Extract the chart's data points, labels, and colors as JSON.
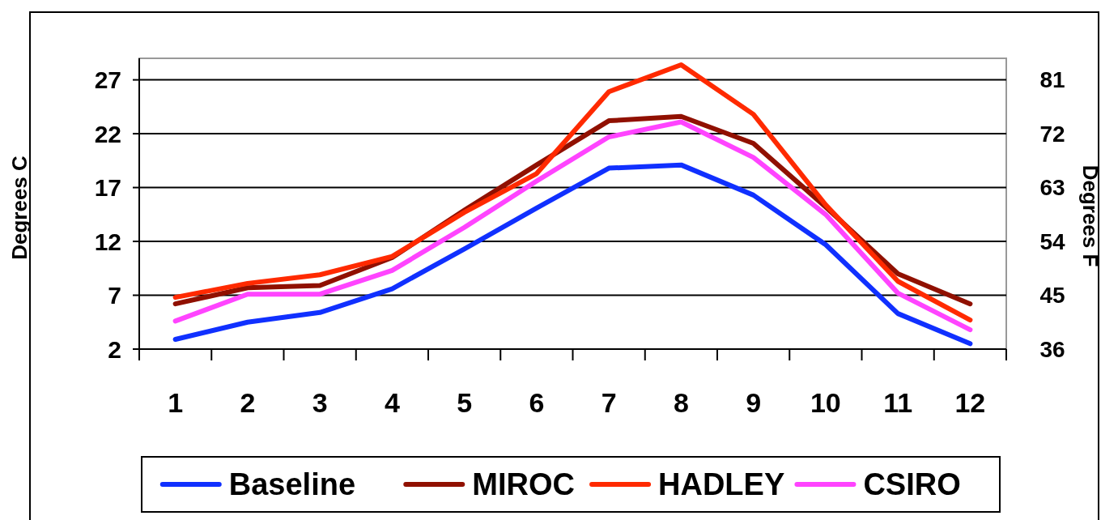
{
  "chart_data": {
    "type": "line",
    "ylabel": "Degrees C",
    "y2label": "Degrees F",
    "categories": [
      "1",
      "2",
      "3",
      "4",
      "5",
      "6",
      "7",
      "8",
      "9",
      "10",
      "11",
      "12"
    ],
    "series": [
      {
        "name": "Baseline",
        "color": "#1030ff",
        "values": [
          2.9,
          4.5,
          5.4,
          7.6,
          11.3,
          15.1,
          18.8,
          19.1,
          16.3,
          11.7,
          5.3,
          2.5
        ]
      },
      {
        "name": "MIROC",
        "color": "#901000",
        "values": [
          6.2,
          7.7,
          7.9,
          10.5,
          14.9,
          19.1,
          23.2,
          23.6,
          21.1,
          15.2,
          9.0,
          6.2
        ]
      },
      {
        "name": "HADLEY",
        "color": "#ff2a00",
        "values": [
          6.8,
          8.1,
          8.9,
          10.6,
          14.7,
          18.3,
          25.9,
          28.4,
          23.8,
          15.4,
          8.3,
          4.7
        ]
      },
      {
        "name": "CSIRO",
        "color": "#ff44ff",
        "values": [
          4.6,
          7.1,
          7.1,
          9.3,
          13.3,
          17.6,
          21.7,
          23.1,
          19.8,
          14.5,
          7.2,
          3.8
        ]
      }
    ],
    "ylim": [
      2,
      29
    ],
    "yticks": [
      2,
      7,
      12,
      17,
      22,
      27
    ],
    "y2lim": [
      36,
      84.6
    ],
    "y2ticks": [
      36,
      45,
      54,
      63,
      72,
      81
    ],
    "grid": "y",
    "legend": "bottom",
    "marker": "none",
    "line_style": "solid"
  }
}
